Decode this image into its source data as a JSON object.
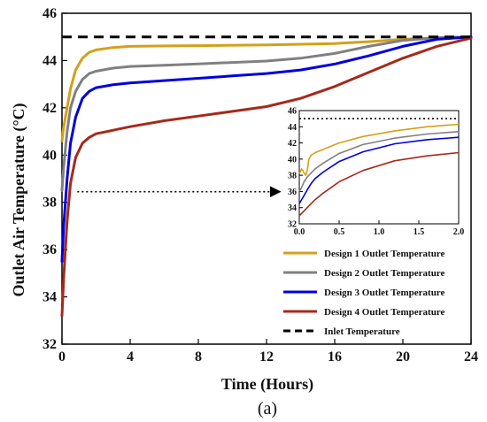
{
  "chart_data": [
    {
      "type": "line",
      "xlabel": "Time (Hours)",
      "ylabel": "Outlet Air Temperature (°C)",
      "xlim": [
        0,
        24
      ],
      "ylim": [
        32,
        46
      ],
      "xticks": [
        0,
        4,
        8,
        12,
        16,
        20,
        24
      ],
      "yticks": [
        32,
        34,
        36,
        38,
        40,
        42,
        44,
        46
      ],
      "grid": false,
      "legend_position": "bottom-right",
      "caption": "(a)",
      "series": [
        {
          "name": "Design 1 Outlet Temperature",
          "color": "#d4a017",
          "x": [
            0,
            0.1,
            0.3,
            0.5,
            0.8,
            1.2,
            1.6,
            2,
            3,
            4,
            6,
            8,
            12,
            16,
            18,
            20,
            22,
            24
          ],
          "y": [
            40.6,
            41.2,
            42.0,
            42.8,
            43.6,
            44.1,
            44.35,
            44.45,
            44.55,
            44.6,
            44.62,
            44.63,
            44.66,
            44.72,
            44.8,
            44.9,
            44.96,
            45.0
          ]
        },
        {
          "name": "Design 2 Outlet Temperature",
          "color": "#808080",
          "x": [
            0,
            0.1,
            0.3,
            0.5,
            0.8,
            1.2,
            1.6,
            2,
            3,
            4,
            6,
            8,
            10,
            12,
            14,
            16,
            18,
            20,
            22,
            24
          ],
          "y": [
            38.5,
            39.5,
            41.0,
            42.0,
            42.7,
            43.2,
            43.45,
            43.55,
            43.68,
            43.75,
            43.8,
            43.86,
            43.92,
            43.98,
            44.1,
            44.3,
            44.6,
            44.85,
            44.97,
            45.0
          ]
        },
        {
          "name": "Design 3 Outlet Temperature",
          "color": "#0000dd",
          "x": [
            0,
            0.1,
            0.3,
            0.5,
            0.8,
            1.2,
            1.6,
            2,
            3,
            4,
            6,
            8,
            10,
            12,
            14,
            16,
            18,
            20,
            22,
            24
          ],
          "y": [
            35.5,
            37.0,
            39.0,
            40.5,
            41.6,
            42.4,
            42.7,
            42.85,
            42.98,
            43.05,
            43.15,
            43.25,
            43.35,
            43.45,
            43.6,
            43.85,
            44.2,
            44.6,
            44.9,
            45.0
          ]
        },
        {
          "name": "Design 4 Outlet Temperature",
          "color": "#a52a1a",
          "x": [
            0,
            0.1,
            0.3,
            0.5,
            0.8,
            1.2,
            1.6,
            2,
            3,
            4,
            6,
            8,
            10,
            12,
            14,
            16,
            18,
            20,
            22,
            24
          ],
          "y": [
            33.2,
            34.8,
            37.2,
            38.8,
            39.9,
            40.5,
            40.75,
            40.9,
            41.05,
            41.2,
            41.45,
            41.65,
            41.85,
            42.05,
            42.4,
            42.9,
            43.5,
            44.1,
            44.6,
            44.95
          ]
        },
        {
          "name": "Inlet Temperature",
          "color": "#000000",
          "dashed": true,
          "x": [
            0,
            24
          ],
          "y": [
            45,
            45
          ]
        }
      ]
    },
    {
      "type": "line",
      "inset": true,
      "xlim": [
        0,
        2.0
      ],
      "ylim": [
        32,
        46
      ],
      "xticks": [
        "0.0",
        "0.5",
        "1.0",
        "1.5",
        "2.0"
      ],
      "yticks": [
        "32",
        "34",
        "36",
        "38",
        "40",
        "42",
        "44",
        "46"
      ],
      "series": [
        {
          "color": "#d4a017",
          "x": [
            0,
            0.03,
            0.06,
            0.08,
            0.1,
            0.12,
            0.15,
            0.2,
            0.3,
            0.5,
            0.8,
            1.2,
            1.6,
            2.0
          ],
          "y": [
            38.2,
            38.8,
            38.3,
            38.0,
            38.6,
            40.0,
            40.5,
            40.8,
            41.2,
            42.0,
            42.8,
            43.5,
            44.0,
            44.3
          ]
        },
        {
          "color": "#808080",
          "x": [
            0,
            0.03,
            0.06,
            0.1,
            0.15,
            0.2,
            0.3,
            0.5,
            0.8,
            1.2,
            1.6,
            2.0
          ],
          "y": [
            36.0,
            36.5,
            37.2,
            37.8,
            38.3,
            38.8,
            39.5,
            40.7,
            41.8,
            42.6,
            43.1,
            43.4
          ]
        },
        {
          "color": "#0000dd",
          "x": [
            0,
            0.03,
            0.06,
            0.1,
            0.15,
            0.2,
            0.3,
            0.5,
            0.8,
            1.2,
            1.6,
            2.0
          ],
          "y": [
            34.5,
            35.0,
            35.5,
            36.2,
            37.0,
            37.6,
            38.4,
            39.7,
            40.9,
            41.9,
            42.4,
            42.7
          ]
        },
        {
          "color": "#a52a1a",
          "x": [
            0,
            0.03,
            0.06,
            0.1,
            0.15,
            0.2,
            0.3,
            0.5,
            0.8,
            1.2,
            1.6,
            2.0
          ],
          "y": [
            33.0,
            33.3,
            33.6,
            34.0,
            34.5,
            35.0,
            35.8,
            37.2,
            38.6,
            39.8,
            40.4,
            40.8
          ]
        },
        {
          "color": "#000000",
          "dotted": true,
          "x": [
            0,
            2.0
          ],
          "y": [
            45,
            45
          ]
        }
      ]
    }
  ]
}
